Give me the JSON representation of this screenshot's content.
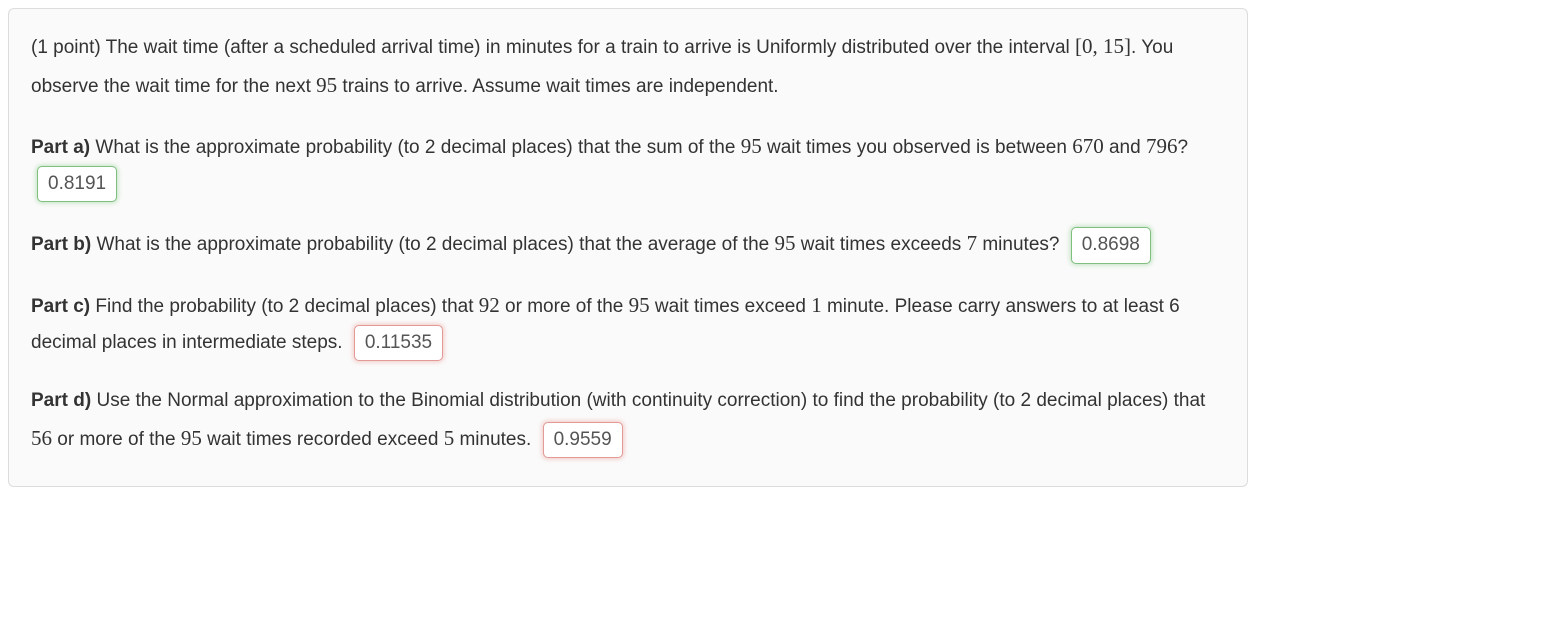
{
  "colors": {
    "card_bg": "#fafafa",
    "card_border": "#dddddd",
    "text": "#333333",
    "input_text": "#555555",
    "correct_border": "#7fbf7f",
    "correct_glow": "rgba(120,200,120,0.45)",
    "incorrect_border": "#e29a96",
    "incorrect_glow": "rgba(230,140,130,0.45)"
  },
  "typography": {
    "body_fontsize_pt": 14,
    "math_font": "Times New Roman"
  },
  "intro": {
    "text_parts": [
      "(1 point) The wait time (after a scheduled arrival time) in minutes for a train to arrive is Uniformly distributed over the interval ",
      "[0, 15]",
      ". You observe the wait time for the next ",
      "95",
      " trains to arrive. Assume wait times are independent."
    ]
  },
  "parts": {
    "a": {
      "label": "Part a)",
      "segments": [
        " What is the approximate probability (to 2 decimal places) that the sum of the ",
        "95",
        " wait times you observed is between ",
        "670",
        " and ",
        "796",
        "?"
      ],
      "answer": {
        "value": "0.8191",
        "state": "correct"
      }
    },
    "b": {
      "label": "Part b)",
      "segments": [
        " What is the approximate probability (to 2 decimal places) that the average of the ",
        "95",
        " wait times exceeds ",
        "7",
        " minutes?"
      ],
      "answer": {
        "value": "0.8698",
        "state": "correct"
      }
    },
    "c": {
      "label": "Part c)",
      "segments": [
        " Find the probability (to 2 decimal places) that ",
        "92",
        " or more of the ",
        "95",
        " wait times exceed ",
        "1",
        " minute. Please carry answers to at least 6 decimal places in intermediate steps."
      ],
      "answer": {
        "value": "0.11535",
        "state": "incorrect"
      }
    },
    "d": {
      "label": "Part d)",
      "segments": [
        " Use the Normal approximation to the Binomial distribution (with continuity correction) to find the probability (to 2 decimal places) that ",
        "56",
        " or more of the ",
        "95",
        " wait times recorded exceed ",
        "5",
        " minutes."
      ],
      "answer": {
        "value": "0.9559",
        "state": "incorrect"
      }
    }
  }
}
